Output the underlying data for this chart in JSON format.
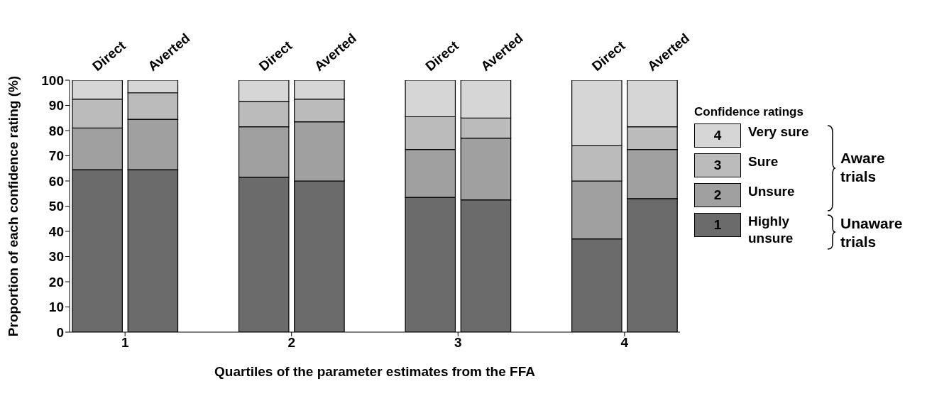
{
  "chart_data": {
    "type": "bar",
    "stacked": true,
    "xlabel": "Quartiles of the parameter estimates from the FFA",
    "ylabel": "Proportion of each confidence rating (%)",
    "legend_title": "Confidence ratings",
    "legend": "right",
    "categories": [
      "Direct",
      "Averted",
      "Direct",
      "Averted",
      "Direct",
      "Averted",
      "Direct",
      "Averted"
    ],
    "series": [
      {
        "name": "Highly unsure",
        "color": "#6b6b6b",
        "values": [
          64.5,
          64.5,
          61.5,
          60,
          53.5,
          52.5,
          37,
          53
        ]
      },
      {
        "name": "Unsure",
        "color": "#a0a0a0",
        "values": [
          16.5,
          20,
          20,
          23.5,
          19,
          24.5,
          23,
          19.5
        ]
      },
      {
        "name": "Sure",
        "color": "#bbbbbb",
        "values": [
          11.5,
          10.5,
          10,
          9,
          13,
          8,
          14,
          9
        ]
      },
      {
        "name": "Very sure",
        "color": "#d6d6d6",
        "values": [
          7.5,
          5,
          8.5,
          7.5,
          14.5,
          15,
          26,
          18.5
        ]
      }
    ],
    "ylim": [
      0,
      100
    ],
    "yticks": [
      0,
      10,
      20,
      30,
      40,
      50,
      60,
      70,
      80,
      90,
      100
    ],
    "annotations": [
      "1",
      "2",
      "3",
      "4",
      "Aware trials",
      "Unaware trials",
      "1",
      "2",
      "3",
      "4"
    ]
  }
}
